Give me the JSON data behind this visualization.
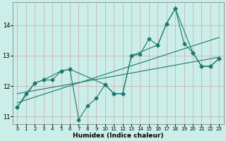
{
  "xlabel": "Humidex (Indice chaleur)",
  "bg_color": "#cceee8",
  "grid_color": "#c8a8a8",
  "line_color": "#1a7a6e",
  "xlim": [
    -0.5,
    23.5
  ],
  "ylim": [
    10.75,
    14.75
  ],
  "yticks": [
    11,
    12,
    13,
    14
  ],
  "xticks": [
    0,
    1,
    2,
    3,
    4,
    5,
    6,
    7,
    8,
    9,
    10,
    11,
    12,
    13,
    14,
    15,
    16,
    17,
    18,
    19,
    20,
    21,
    22,
    23
  ],
  "line1_x": [
    0,
    1,
    2,
    3,
    4,
    5,
    6,
    7,
    8,
    9,
    10,
    11,
    12,
    13,
    14,
    15,
    16,
    17,
    18,
    19,
    20,
    21,
    22,
    23
  ],
  "line1_y": [
    11.3,
    11.75,
    12.1,
    12.2,
    12.2,
    12.5,
    12.55,
    10.9,
    11.35,
    11.6,
    12.05,
    11.75,
    11.75,
    13.0,
    13.05,
    13.55,
    13.35,
    14.05,
    14.55,
    13.4,
    13.1,
    12.65,
    12.65,
    12.9
  ],
  "line2_x": [
    0,
    2,
    3,
    5,
    6,
    10,
    11,
    12,
    13,
    16,
    17,
    18,
    20,
    21,
    22,
    23
  ],
  "line2_y": [
    11.3,
    12.1,
    12.2,
    12.5,
    12.55,
    12.05,
    11.75,
    11.75,
    13.0,
    13.35,
    14.05,
    14.55,
    13.1,
    12.65,
    12.65,
    12.9
  ],
  "trend1_x": [
    0,
    23
  ],
  "trend1_y": [
    11.45,
    13.6
  ],
  "trend2_x": [
    0,
    23
  ],
  "trend2_y": [
    11.75,
    12.95
  ]
}
